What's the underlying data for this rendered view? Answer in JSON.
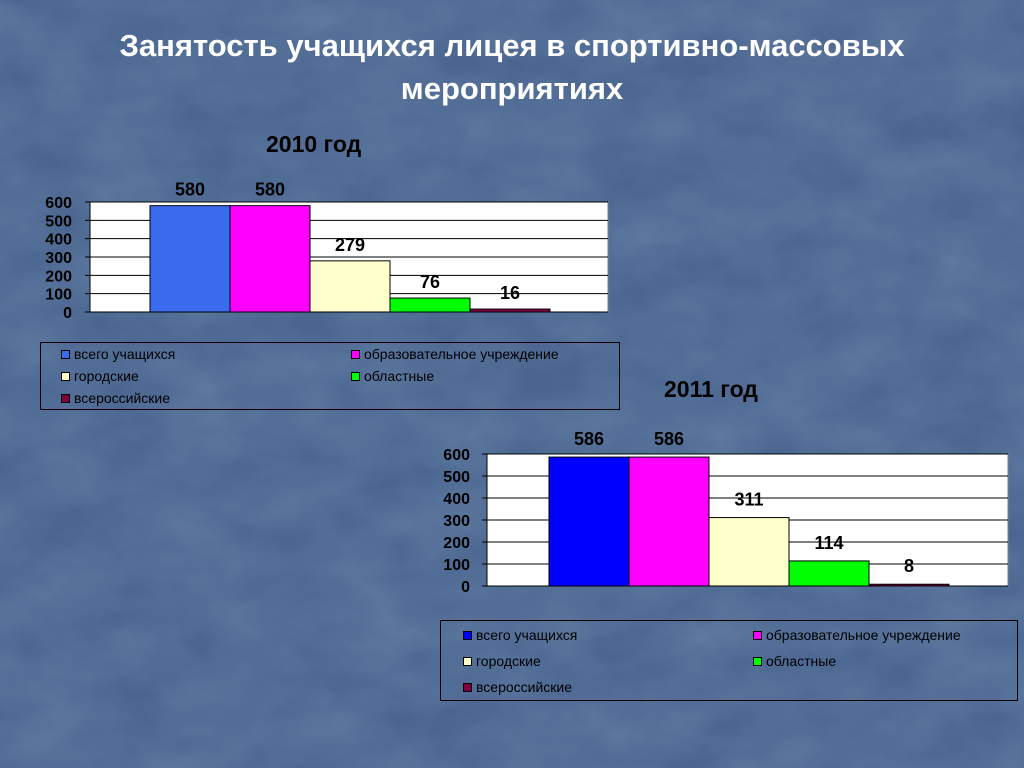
{
  "slide": {
    "title_line1": "Занятость учащихся лицея в спортивно-массовых",
    "title_line2": "мероприятиях",
    "background_color": "#4d6890"
  },
  "chart_data": [
    {
      "type": "bar",
      "title": "2010 год",
      "categories": [
        "всего учащихся",
        "образовательное учреждение",
        "городские",
        "областные",
        "всероссийские"
      ],
      "values": [
        580,
        580,
        279,
        76,
        16
      ],
      "colors": [
        "#3b6cf0",
        "#ff00ff",
        "#ffffcc",
        "#00ff00",
        "#800040"
      ],
      "yticks": [
        0,
        100,
        200,
        300,
        400,
        500,
        600
      ],
      "ylim": [
        0,
        600
      ],
      "grid": true,
      "legend_position": "bottom"
    },
    {
      "type": "bar",
      "title": "2011 год",
      "categories": [
        "всего учащихся",
        "образовательное учреждение",
        "городские",
        "областные",
        "всероссийские"
      ],
      "values": [
        586,
        586,
        311,
        114,
        8
      ],
      "colors": [
        "#0000ff",
        "#ff00ff",
        "#ffffcc",
        "#00ff00",
        "#800040"
      ],
      "yticks": [
        0,
        100,
        200,
        300,
        400,
        500,
        600
      ],
      "ylim": [
        0,
        600
      ],
      "grid": true,
      "legend_position": "bottom"
    }
  ]
}
